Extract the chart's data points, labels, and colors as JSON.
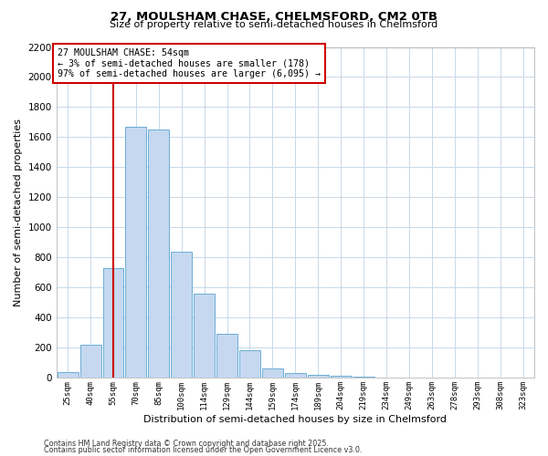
{
  "title1": "27, MOULSHAM CHASE, CHELMSFORD, CM2 0TB",
  "title2": "Size of property relative to semi-detached houses in Chelmsford",
  "xlabel": "Distribution of semi-detached houses by size in Chelmsford",
  "ylabel": "Number of semi-detached properties",
  "bar_labels": [
    "25sqm",
    "40sqm",
    "55sqm",
    "70sqm",
    "85sqm",
    "100sqm",
    "114sqm",
    "129sqm",
    "144sqm",
    "159sqm",
    "174sqm",
    "189sqm",
    "204sqm",
    "219sqm",
    "234sqm",
    "249sqm",
    "263sqm",
    "278sqm",
    "293sqm",
    "308sqm",
    "323sqm"
  ],
  "bar_values": [
    40,
    220,
    730,
    1670,
    1650,
    840,
    560,
    295,
    185,
    65,
    35,
    20,
    15,
    10,
    5,
    0,
    0,
    0,
    0,
    0,
    0
  ],
  "bar_color": "#c5d8f0",
  "bar_edge_color": "#6baed6",
  "vline_x_idx": 2,
  "vline_color": "#cc0000",
  "ylim": [
    0,
    2200
  ],
  "yticks": [
    0,
    200,
    400,
    600,
    800,
    1000,
    1200,
    1400,
    1600,
    1800,
    2000,
    2200
  ],
  "annotation_title": "27 MOULSHAM CHASE: 54sqm",
  "annotation_line1": "← 3% of semi-detached houses are smaller (178)",
  "annotation_line2": "97% of semi-detached houses are larger (6,095) →",
  "annotation_box_color": "#ffffff",
  "annotation_box_edge": "#cc0000",
  "footer1": "Contains HM Land Registry data © Crown copyright and database right 2025.",
  "footer2": "Contains public sector information licensed under the Open Government Licence v3.0.",
  "bg_color": "#ffffff",
  "plot_bg_color": "#ffffff",
  "grid_color": "#c8d8e8"
}
